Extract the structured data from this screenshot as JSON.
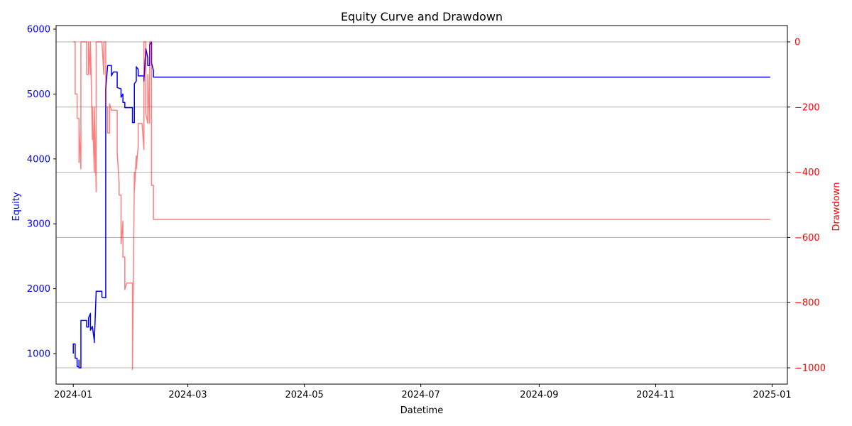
{
  "chart_data": {
    "type": "line",
    "title": "Equity Curve and Drawdown",
    "xlabel": "Datetime",
    "ylabel_left": "Equity",
    "ylabel_right": "Drawdown",
    "grid": "horizontal, right axis",
    "colors": {
      "equity": "#0000ff",
      "drawdown": "#ff0000",
      "drawdown_alpha": 0.5,
      "axis": "#000000",
      "grid": "#b0b0b0"
    },
    "x_ticks": [
      "2024-01",
      "2024-03",
      "2024-05",
      "2024-07",
      "2024-09",
      "2024-11",
      "2025-01"
    ],
    "y_left_ticks": [
      "1000",
      "2000",
      "3000",
      "4000",
      "5000",
      "6000"
    ],
    "y_right_ticks": [
      "0",
      "−200",
      "−400",
      "−600",
      "−800",
      "−1000"
    ],
    "xlim": [
      "2023-12-23",
      "2025-01-09"
    ],
    "ylim_left": [
      530,
      6055
    ],
    "ylim_right": [
      -1050,
      50
    ],
    "series": [
      {
        "name": "Equity",
        "axis": "left",
        "points": [
          [
            "2024-01-01",
            1000
          ],
          [
            "2024-01-01",
            1150
          ],
          [
            "2024-01-02",
            1150
          ],
          [
            "2024-01-02",
            930
          ],
          [
            "2024-01-03",
            930
          ],
          [
            "2024-01-03",
            800
          ],
          [
            "2024-01-04",
            800
          ],
          [
            "2024-01-04",
            900
          ],
          [
            "2024-01-04",
            780
          ],
          [
            "2024-01-05",
            780
          ],
          [
            "2024-01-05",
            1510
          ],
          [
            "2024-01-08",
            1510
          ],
          [
            "2024-01-08",
            1410
          ],
          [
            "2024-01-09",
            1410
          ],
          [
            "2024-01-09",
            1550
          ],
          [
            "2024-01-10",
            1620
          ],
          [
            "2024-01-10",
            1360
          ],
          [
            "2024-01-11",
            1420
          ],
          [
            "2024-01-12",
            1200
          ],
          [
            "2024-01-12",
            1170
          ],
          [
            "2024-01-13",
            1960
          ],
          [
            "2024-01-16",
            1960
          ],
          [
            "2024-01-16",
            1870
          ],
          [
            "2024-01-17",
            1860
          ],
          [
            "2024-01-18",
            1860
          ],
          [
            "2024-01-18",
            5080
          ],
          [
            "2024-01-19",
            5440
          ],
          [
            "2024-01-21",
            5440
          ],
          [
            "2024-01-21",
            5280
          ],
          [
            "2024-01-22",
            5340
          ],
          [
            "2024-01-24",
            5340
          ],
          [
            "2024-01-24",
            5100
          ],
          [
            "2024-01-26",
            5080
          ],
          [
            "2024-01-26",
            4950
          ],
          [
            "2024-01-27",
            5000
          ],
          [
            "2024-01-27",
            4870
          ],
          [
            "2024-01-28",
            4870
          ],
          [
            "2024-01-28",
            4790
          ],
          [
            "2024-02-01",
            4790
          ],
          [
            "2024-02-01",
            4560
          ],
          [
            "2024-02-02",
            4560
          ],
          [
            "2024-02-02",
            5160
          ],
          [
            "2024-02-03",
            5200
          ],
          [
            "2024-02-03",
            5420
          ],
          [
            "2024-02-04",
            5380
          ],
          [
            "2024-02-04",
            5280
          ],
          [
            "2024-02-07",
            5280
          ],
          [
            "2024-02-07",
            5200
          ],
          [
            "2024-02-08",
            5700
          ],
          [
            "2024-02-09",
            5560
          ],
          [
            "2024-02-09",
            5440
          ],
          [
            "2024-02-10",
            5440
          ],
          [
            "2024-02-10",
            5760
          ],
          [
            "2024-02-11",
            5800
          ],
          [
            "2024-02-11",
            5480
          ],
          [
            "2024-02-12",
            5360
          ],
          [
            "2024-02-12",
            5260
          ],
          [
            "2024-12-31",
            5260
          ]
        ]
      },
      {
        "name": "Drawdown",
        "axis": "right",
        "points": [
          [
            "2024-01-01",
            0
          ],
          [
            "2024-01-02",
            0
          ],
          [
            "2024-01-02",
            -160
          ],
          [
            "2024-01-03",
            -160
          ],
          [
            "2024-01-03",
            -235
          ],
          [
            "2024-01-04",
            -235
          ],
          [
            "2024-01-04",
            -370
          ],
          [
            "2024-01-04",
            -260
          ],
          [
            "2024-01-05",
            -390
          ],
          [
            "2024-01-05",
            0
          ],
          [
            "2024-01-08",
            0
          ],
          [
            "2024-01-08",
            -100
          ],
          [
            "2024-01-09",
            -100
          ],
          [
            "2024-01-09",
            0
          ],
          [
            "2024-01-10",
            -100
          ],
          [
            "2024-01-10",
            0
          ],
          [
            "2024-01-11",
            -300
          ],
          [
            "2024-01-11",
            -200
          ],
          [
            "2024-01-12",
            -400
          ],
          [
            "2024-01-12",
            -200
          ],
          [
            "2024-01-13",
            -460
          ],
          [
            "2024-01-13",
            0
          ],
          [
            "2024-01-16",
            0
          ],
          [
            "2024-01-17",
            -100
          ],
          [
            "2024-01-17",
            0
          ],
          [
            "2024-01-18",
            0
          ],
          [
            "2024-01-18",
            -200
          ],
          [
            "2024-01-19",
            -200
          ],
          [
            "2024-01-19",
            -280
          ],
          [
            "2024-01-20",
            -280
          ],
          [
            "2024-01-20",
            -190
          ],
          [
            "2024-01-21",
            -210
          ],
          [
            "2024-01-24",
            -210
          ],
          [
            "2024-01-24",
            -340
          ],
          [
            "2024-01-25",
            -430
          ],
          [
            "2024-01-25",
            -470
          ],
          [
            "2024-01-26",
            -470
          ],
          [
            "2024-01-26",
            -620
          ],
          [
            "2024-01-27",
            -550
          ],
          [
            "2024-01-27",
            -660
          ],
          [
            "2024-01-28",
            -660
          ],
          [
            "2024-01-28",
            -760
          ],
          [
            "2024-01-29",
            -740
          ],
          [
            "2024-02-01",
            -740
          ],
          [
            "2024-02-01",
            -780
          ],
          [
            "2024-02-01",
            -1005
          ],
          [
            "2024-02-02",
            -400
          ],
          [
            "2024-02-02",
            -460
          ],
          [
            "2024-02-03",
            -350
          ],
          [
            "2024-02-03",
            -390
          ],
          [
            "2024-02-04",
            -320
          ],
          [
            "2024-02-04",
            -250
          ],
          [
            "2024-02-06",
            -250
          ],
          [
            "2024-02-07",
            -330
          ],
          [
            "2024-02-07",
            0
          ],
          [
            "2024-02-08",
            0
          ],
          [
            "2024-02-08",
            -220
          ],
          [
            "2024-02-09",
            -250
          ],
          [
            "2024-02-09",
            -100
          ],
          [
            "2024-02-10",
            -250
          ],
          [
            "2024-02-10",
            0
          ],
          [
            "2024-02-11",
            0
          ],
          [
            "2024-02-11",
            -440
          ],
          [
            "2024-02-12",
            -440
          ],
          [
            "2024-02-12",
            -545
          ],
          [
            "2024-12-31",
            -545
          ]
        ]
      }
    ]
  }
}
